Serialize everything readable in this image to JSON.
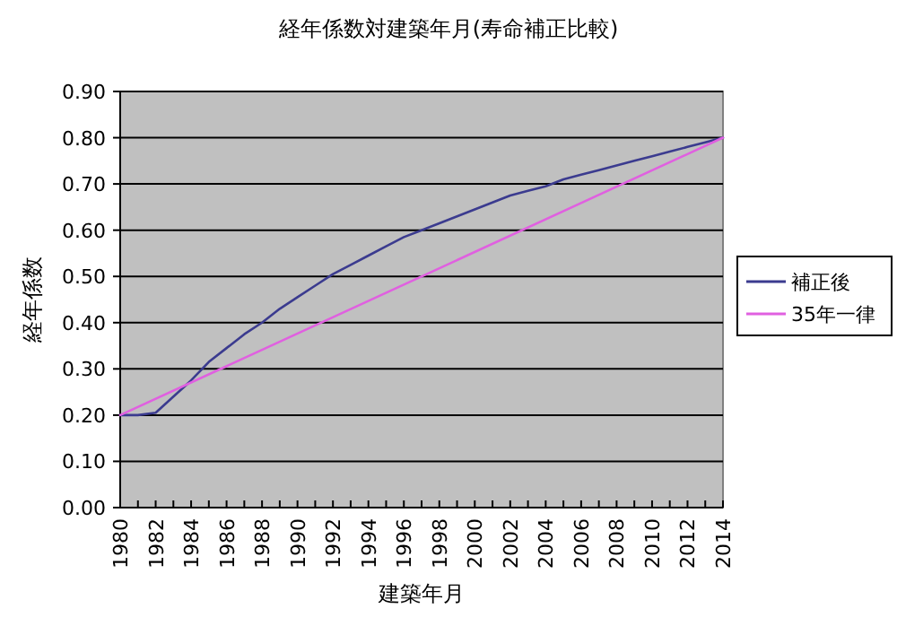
{
  "chart_data": {
    "type": "line",
    "title": "経年係数対建築年月(寿命補正比較)",
    "xlabel": "建築年月",
    "ylabel": "経年係数",
    "series": [
      {
        "name": "補正後",
        "color": "#3b3b8f",
        "x": [
          1980,
          1981,
          1982,
          1983,
          1984,
          1985,
          1986,
          1987,
          1988,
          1989,
          1990,
          1991,
          1992,
          1993,
          1994,
          1995,
          1996,
          1997,
          1998,
          1999,
          2000,
          2001,
          2002,
          2003,
          2004,
          2005,
          2006,
          2007,
          2008,
          2009,
          2010,
          2011,
          2012,
          2013,
          2014
        ],
        "values": [
          0.2,
          0.2,
          0.205,
          0.24,
          0.275,
          0.315,
          0.345,
          0.375,
          0.4,
          0.43,
          0.455,
          0.48,
          0.505,
          0.525,
          0.545,
          0.565,
          0.585,
          0.6,
          0.615,
          0.63,
          0.645,
          0.66,
          0.675,
          0.685,
          0.695,
          0.71,
          0.72,
          0.73,
          0.74,
          0.75,
          0.76,
          0.77,
          0.78,
          0.79,
          0.8
        ]
      },
      {
        "name": "35年一律",
        "color": "#e060e0",
        "x": [
          1980,
          2014
        ],
        "values": [
          0.2,
          0.8
        ]
      }
    ],
    "xlim": [
      1980,
      2014
    ],
    "xticks": [
      1980,
      {
        "value": 1981,
        "label": null
      },
      1982,
      {
        "value": 1983,
        "label": null
      },
      1984,
      {
        "value": 1985,
        "label": null
      },
      1986,
      {
        "value": 1987,
        "label": null
      },
      1988,
      {
        "value": 1989,
        "label": null
      },
      1990,
      {
        "value": 1991,
        "label": null
      },
      1992,
      {
        "value": 1993,
        "label": null
      },
      1994,
      {
        "value": 1995,
        "label": null
      },
      1996,
      {
        "value": 1997,
        "label": null
      },
      1998,
      {
        "value": 1999,
        "label": null
      },
      2000,
      {
        "value": 2001,
        "label": null
      },
      2002,
      {
        "value": 2003,
        "label": null
      },
      2004,
      {
        "value": 2005,
        "label": null
      },
      2006,
      {
        "value": 2007,
        "label": null
      },
      2008,
      {
        "value": 2009,
        "label": null
      },
      2010,
      {
        "value": 2011,
        "label": null
      },
      2012,
      {
        "value": 2013,
        "label": null
      },
      2014
    ],
    "ylim": [
      0,
      0.9
    ],
    "yticks": [
      {
        "value": 0,
        "label": "0.00"
      },
      {
        "value": 0.1,
        "label": "0.10"
      },
      {
        "value": 0.2,
        "label": "0.20"
      },
      {
        "value": 0.3,
        "label": "0.30"
      },
      {
        "value": 0.4,
        "label": "0.40"
      },
      {
        "value": 0.5,
        "label": "0.50"
      },
      {
        "value": 0.6,
        "label": "0.60"
      },
      {
        "value": 0.7,
        "label": "0.70"
      },
      {
        "value": 0.8,
        "label": "0.80"
      },
      {
        "value": 0.9,
        "label": "0.90"
      }
    ],
    "grid": "y",
    "legend": "right"
  }
}
